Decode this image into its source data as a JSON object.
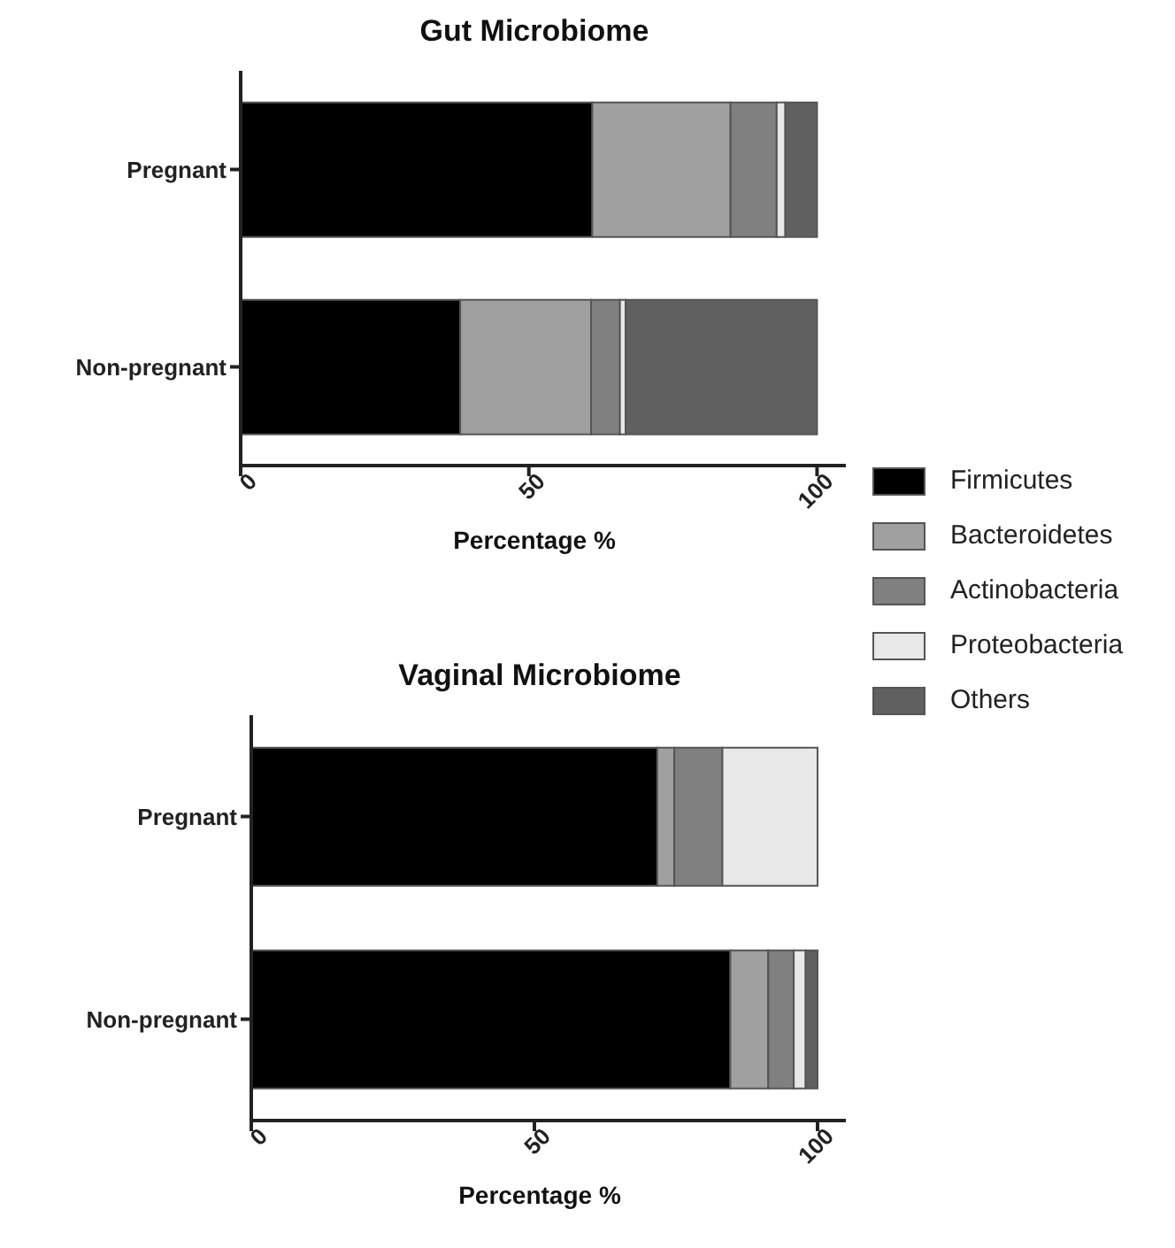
{
  "chart_data": [
    {
      "type": "bar",
      "title": "Gut Microbiome",
      "orientation": "horizontal",
      "stacked": true,
      "categories": [
        "Pregnant",
        "Non-pregnant"
      ],
      "xlabel": "Percentage %",
      "xlim": [
        0,
        105
      ],
      "xticks": [
        0,
        50,
        100
      ],
      "legend": "right",
      "series": [
        {
          "name": "Firmicutes",
          "color": "#000000",
          "values": [
            61,
            38.1
          ]
        },
        {
          "name": "Bacteroidetes",
          "color": "#a0a0a0",
          "values": [
            24,
            22.7
          ]
        },
        {
          "name": "Actinobacteria",
          "color": "#808080",
          "values": [
            8,
            5
          ]
        },
        {
          "name": "Proteobacteria",
          "color": "#e8e8e8",
          "values": [
            1.5,
            1
          ]
        },
        {
          "name": "Others",
          "color": "#606060",
          "values": [
            5.5,
            33.2
          ]
        }
      ]
    },
    {
      "type": "bar",
      "title": "Vaginal Microbiome",
      "orientation": "horizontal",
      "stacked": true,
      "categories": [
        "Pregnant",
        "Non-pregnant"
      ],
      "xlabel": "Percentage %",
      "xlim": [
        0,
        105
      ],
      "xticks": [
        0,
        50,
        100
      ],
      "series": [
        {
          "color": "#000000",
          "values": [
            71.7,
            84.6
          ]
        },
        {
          "color": "#a0a0a0",
          "values": [
            3,
            6.7
          ]
        },
        {
          "color": "#808080",
          "values": [
            8.5,
            4.5
          ]
        },
        {
          "color": "#e8e8e8",
          "values": [
            16.8,
            2.1
          ]
        },
        {
          "color": "#606060",
          "values": [
            0,
            2.1
          ]
        }
      ]
    }
  ]
}
